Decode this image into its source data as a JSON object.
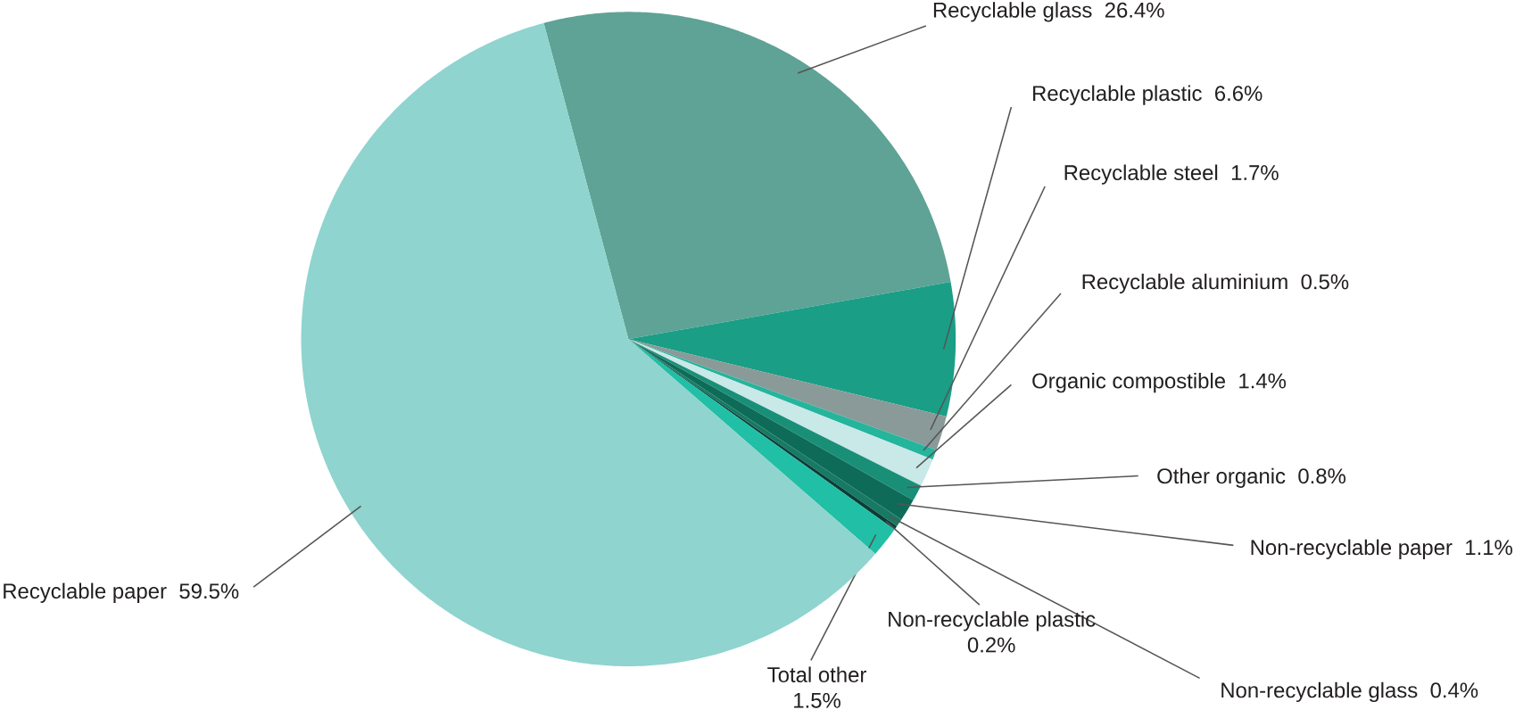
{
  "chart_data": {
    "type": "pie",
    "categories": [
      "Recyclable glass",
      "Recyclable plastic",
      "Recyclable steel",
      "Recyclable aluminium",
      "Organic compostible",
      "Other organic",
      "Non-recyclable paper",
      "Non-recyclable glass",
      "Non-recyclable plastic",
      "Total other",
      "Recyclable paper"
    ],
    "values": [
      26.4,
      6.6,
      1.7,
      0.5,
      1.4,
      0.8,
      1.1,
      0.4,
      0.2,
      1.5,
      59.5
    ],
    "value_labels": [
      "26.4%",
      "6.6%",
      "1.7%",
      "0.5%",
      "1.4%",
      "0.8%",
      "1.1%",
      "0.4%",
      "0.2%",
      "1.5%",
      "59.5%"
    ],
    "colors": [
      "#5fa296",
      "#1a9e86",
      "#8a9a98",
      "#25b59c",
      "#c9e8e8",
      "#1a8f78",
      "#0e6b58",
      "#167a64",
      "#0b3d36",
      "#20bfa6",
      "#8fd4ce"
    ]
  }
}
